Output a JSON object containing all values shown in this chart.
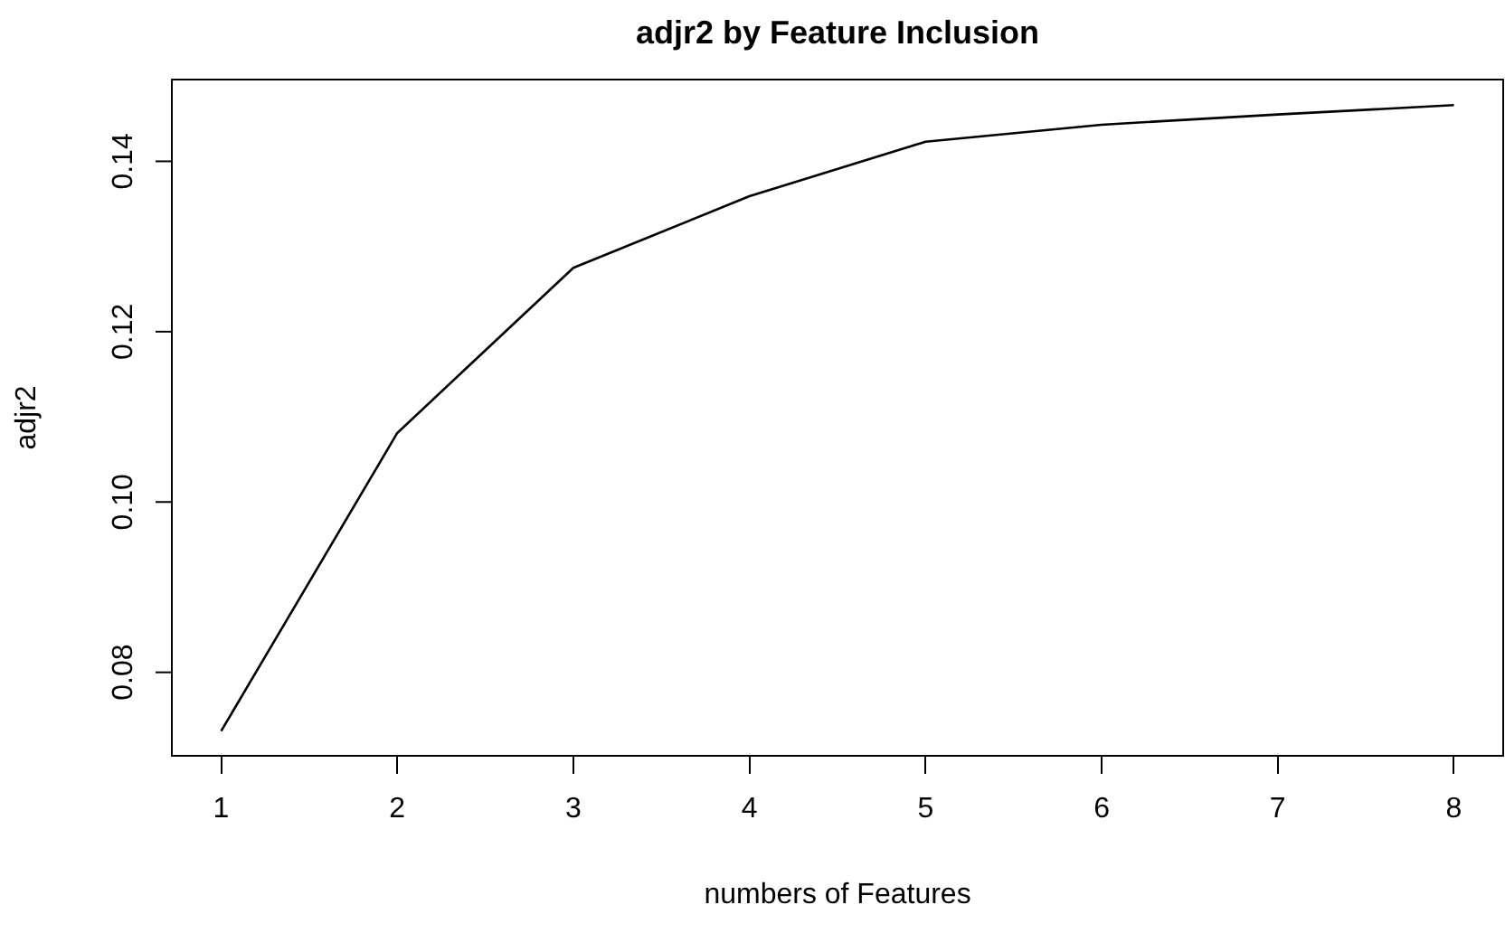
{
  "chart_data": {
    "type": "line",
    "title": "adjr2 by Feature Inclusion",
    "xlabel": "numbers of Features",
    "ylabel": "adjr2",
    "x": [
      1,
      2,
      3,
      4,
      5,
      6,
      7,
      8
    ],
    "series": [
      {
        "color": "#000000",
        "values": [
          0.0731,
          0.1081,
          0.1275,
          0.1359,
          0.1423,
          0.1443,
          0.1455,
          0.1466
        ]
      }
    ],
    "xlim": [
      0.72,
      8.28
    ],
    "xticks": [
      1,
      2,
      3,
      4,
      5,
      6,
      7,
      8
    ],
    "ylim": [
      0.0702,
      0.1496
    ],
    "yticks": [
      {
        "value": 0.08,
        "label": "0.08"
      },
      {
        "value": 0.1,
        "label": "0.10"
      },
      {
        "value": 0.12,
        "label": "0.12"
      },
      {
        "value": 0.14,
        "label": "0.14"
      }
    ],
    "marker": "none",
    "line_style": "solid",
    "legend": false
  }
}
